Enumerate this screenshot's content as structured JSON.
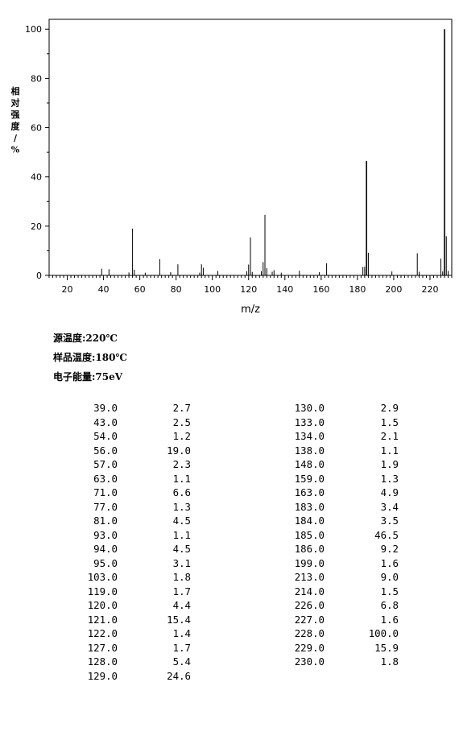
{
  "chart_data": {
    "type": "bar",
    "xlabel": "m/z",
    "ylabel": "相对强度/%",
    "xlim": [
      10,
      232
    ],
    "ylim": [
      0,
      104
    ],
    "xticks": [
      20,
      40,
      60,
      80,
      100,
      120,
      140,
      160,
      180,
      200,
      220
    ],
    "yticks": [
      0,
      20,
      40,
      60,
      80,
      100
    ],
    "grid": false,
    "peaks": [
      {
        "mz": 39.0,
        "intensity": 2.7
      },
      {
        "mz": 43.0,
        "intensity": 2.5
      },
      {
        "mz": 54.0,
        "intensity": 1.2
      },
      {
        "mz": 56.0,
        "intensity": 19.0
      },
      {
        "mz": 57.0,
        "intensity": 2.3
      },
      {
        "mz": 63.0,
        "intensity": 1.1
      },
      {
        "mz": 71.0,
        "intensity": 6.6
      },
      {
        "mz": 77.0,
        "intensity": 1.3
      },
      {
        "mz": 81.0,
        "intensity": 4.5
      },
      {
        "mz": 93.0,
        "intensity": 1.1
      },
      {
        "mz": 94.0,
        "intensity": 4.5
      },
      {
        "mz": 95.0,
        "intensity": 3.1
      },
      {
        "mz": 103.0,
        "intensity": 1.8
      },
      {
        "mz": 119.0,
        "intensity": 1.7
      },
      {
        "mz": 120.0,
        "intensity": 4.4
      },
      {
        "mz": 121.0,
        "intensity": 15.4
      },
      {
        "mz": 122.0,
        "intensity": 1.4
      },
      {
        "mz": 127.0,
        "intensity": 1.7
      },
      {
        "mz": 128.0,
        "intensity": 5.4
      },
      {
        "mz": 129.0,
        "intensity": 24.6
      },
      {
        "mz": 130.0,
        "intensity": 2.9
      },
      {
        "mz": 133.0,
        "intensity": 1.5
      },
      {
        "mz": 134.0,
        "intensity": 2.1
      },
      {
        "mz": 138.0,
        "intensity": 1.1
      },
      {
        "mz": 148.0,
        "intensity": 1.9
      },
      {
        "mz": 159.0,
        "intensity": 1.3
      },
      {
        "mz": 163.0,
        "intensity": 4.9
      },
      {
        "mz": 183.0,
        "intensity": 3.4
      },
      {
        "mz": 184.0,
        "intensity": 3.5
      },
      {
        "mz": 185.0,
        "intensity": 46.5
      },
      {
        "mz": 186.0,
        "intensity": 9.2
      },
      {
        "mz": 199.0,
        "intensity": 1.6
      },
      {
        "mz": 213.0,
        "intensity": 9.0
      },
      {
        "mz": 214.0,
        "intensity": 1.5
      },
      {
        "mz": 226.0,
        "intensity": 6.8
      },
      {
        "mz": 227.0,
        "intensity": 1.6
      },
      {
        "mz": 228.0,
        "intensity": 100.0
      },
      {
        "mz": 229.0,
        "intensity": 15.9
      },
      {
        "mz": 230.0,
        "intensity": 1.8
      }
    ]
  },
  "parameters": {
    "source_temperature": "源温度:220℃",
    "sample_temperature": "样品温度:180℃",
    "electron_energy": "电子能量:75eV"
  },
  "peak_table": {
    "left": [
      [
        "39.0",
        "2.7"
      ],
      [
        "43.0",
        "2.5"
      ],
      [
        "54.0",
        "1.2"
      ],
      [
        "56.0",
        "19.0"
      ],
      [
        "57.0",
        "2.3"
      ],
      [
        "63.0",
        "1.1"
      ],
      [
        "71.0",
        "6.6"
      ],
      [
        "77.0",
        "1.3"
      ],
      [
        "81.0",
        "4.5"
      ],
      [
        "93.0",
        "1.1"
      ],
      [
        "94.0",
        "4.5"
      ],
      [
        "95.0",
        "3.1"
      ],
      [
        "103.0",
        "1.8"
      ],
      [
        "119.0",
        "1.7"
      ],
      [
        "120.0",
        "4.4"
      ],
      [
        "121.0",
        "15.4"
      ],
      [
        "122.0",
        "1.4"
      ],
      [
        "127.0",
        "1.7"
      ],
      [
        "128.0",
        "5.4"
      ],
      [
        "129.0",
        "24.6"
      ]
    ],
    "right": [
      [
        "130.0",
        "2.9"
      ],
      [
        "133.0",
        "1.5"
      ],
      [
        "134.0",
        "2.1"
      ],
      [
        "138.0",
        "1.1"
      ],
      [
        "148.0",
        "1.9"
      ],
      [
        "159.0",
        "1.3"
      ],
      [
        "163.0",
        "4.9"
      ],
      [
        "183.0",
        "3.4"
      ],
      [
        "184.0",
        "3.5"
      ],
      [
        "185.0",
        "46.5"
      ],
      [
        "186.0",
        "9.2"
      ],
      [
        "199.0",
        "1.6"
      ],
      [
        "213.0",
        "9.0"
      ],
      [
        "214.0",
        "1.5"
      ],
      [
        "226.0",
        "6.8"
      ],
      [
        "227.0",
        "1.6"
      ],
      [
        "228.0",
        "100.0"
      ],
      [
        "229.0",
        "15.9"
      ],
      [
        "230.0",
        "1.8"
      ]
    ]
  }
}
